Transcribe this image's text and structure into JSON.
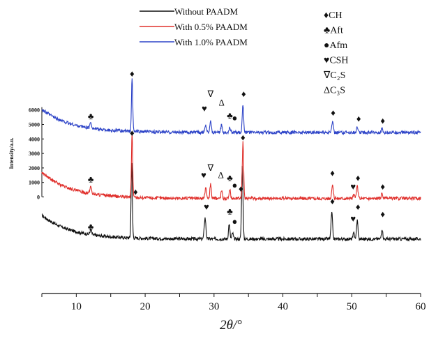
{
  "chart_data": {
    "type": "line",
    "xlabel": "2θ/°",
    "ylabel": "Intensity/a.u.",
    "xlim": [
      5,
      60
    ],
    "x_ticks": [
      "10",
      "20",
      "30",
      "40",
      "50",
      "60"
    ],
    "y_ticks": [
      "0",
      "1000",
      "2000",
      "3000",
      "4000",
      "5000",
      "6000"
    ],
    "ylim_top_trace": [
      0,
      6000
    ],
    "legend": {
      "position": "top",
      "entries": [
        {
          "label": "Without PAADM",
          "color": "#111111"
        },
        {
          "label": "With 0.5% PAADM",
          "color": "#e0302c"
        },
        {
          "label": "With 1.0% PAADM",
          "color": "#2f45c8"
        }
      ]
    },
    "phase_legend": [
      {
        "symbol": "♦",
        "label": "CH"
      },
      {
        "symbol": "♣",
        "label": "Aft"
      },
      {
        "symbol": "●",
        "label": "Afm"
      },
      {
        "symbol": "♥",
        "label": "CSH"
      },
      {
        "symbol": "∇",
        "label": "C₂S"
      },
      {
        "symbol": "Δ",
        "label": "C₃S"
      }
    ],
    "series": [
      {
        "name": "Without PAADM",
        "color": "#111111",
        "baseline": -2900,
        "background": {
          "start": 1650,
          "decay": 4.2
        },
        "peaks": [
          {
            "x": 12.1,
            "h": 350,
            "w": 0.12
          },
          {
            "x": 18.05,
            "h": 5200,
            "w": 0.09
          },
          {
            "x": 28.7,
            "h": 1450,
            "w": 0.12
          },
          {
            "x": 32.2,
            "h": 1050,
            "w": 0.1
          },
          {
            "x": 32.7,
            "h": 400,
            "w": 0.1
          },
          {
            "x": 34.1,
            "h": 5000,
            "w": 0.1
          },
          {
            "x": 47.1,
            "h": 1800,
            "w": 0.11
          },
          {
            "x": 50.3,
            "h": 400,
            "w": 0.11
          },
          {
            "x": 50.8,
            "h": 1300,
            "w": 0.1
          },
          {
            "x": 54.4,
            "h": 700,
            "w": 0.1
          }
        ],
        "markers": [
          {
            "x": 12.1,
            "y": -2250,
            "symbol": "♣"
          },
          {
            "x": 18.6,
            "y": 150,
            "symbol": "♦"
          },
          {
            "x": 28.9,
            "y": -900,
            "symbol": "♥"
          },
          {
            "x": 32.3,
            "y": -1200,
            "symbol": "♣"
          },
          {
            "x": 33.0,
            "y": -1900,
            "symbol": "●"
          },
          {
            "x": 33.9,
            "y": 350,
            "symbol": "♦"
          },
          {
            "x": 47.2,
            "y": -500,
            "symbol": "♦"
          },
          {
            "x": 50.2,
            "y": -1700,
            "symbol": "♥"
          },
          {
            "x": 50.9,
            "y": -900,
            "symbol": "♦"
          },
          {
            "x": 54.5,
            "y": -1400,
            "symbol": "♦"
          }
        ]
      },
      {
        "name": "With 0.5% PAADM",
        "color": "#e0302c",
        "baseline": -100,
        "background": {
          "start": 1800,
          "decay": 4.2
        },
        "peaks": [
          {
            "x": 12.1,
            "h": 500,
            "w": 0.12
          },
          {
            "x": 18.1,
            "h": 4500,
            "w": 0.09
          },
          {
            "x": 28.8,
            "h": 700,
            "w": 0.12
          },
          {
            "x": 29.5,
            "h": 1000,
            "w": 0.1
          },
          {
            "x": 31.1,
            "h": 550,
            "w": 0.1
          },
          {
            "x": 32.3,
            "h": 550,
            "w": 0.1
          },
          {
            "x": 34.2,
            "h": 3900,
            "w": 0.1
          },
          {
            "x": 47.2,
            "h": 1000,
            "w": 0.11
          },
          {
            "x": 50.3,
            "h": 250,
            "w": 0.11
          },
          {
            "x": 50.8,
            "h": 900,
            "w": 0.1
          },
          {
            "x": 54.4,
            "h": 350,
            "w": 0.1
          }
        ],
        "markers": [
          {
            "x": 12.1,
            "y": 1000,
            "symbol": "♣"
          },
          {
            "x": 18.1,
            "y": 4200,
            "symbol": "♦"
          },
          {
            "x": 28.5,
            "y": 1300,
            "symbol": "♥"
          },
          {
            "x": 29.5,
            "y": 1800,
            "symbol": "∇"
          },
          {
            "x": 31.0,
            "y": 1300,
            "symbol": "Δ"
          },
          {
            "x": 32.3,
            "y": 1100,
            "symbol": "♣"
          },
          {
            "x": 33.0,
            "y": 600,
            "symbol": "●"
          },
          {
            "x": 34.2,
            "y": 3900,
            "symbol": "♦"
          },
          {
            "x": 47.2,
            "y": 1450,
            "symbol": "♦"
          },
          {
            "x": 50.2,
            "y": 500,
            "symbol": "♥"
          },
          {
            "x": 50.9,
            "y": 1100,
            "symbol": "♦"
          },
          {
            "x": 54.5,
            "y": 500,
            "symbol": "♦"
          }
        ]
      },
      {
        "name": "With 1.0% PAADM",
        "color": "#2f45c8",
        "baseline": 4450,
        "background": {
          "start": 1600,
          "decay": 4.2
        },
        "peaks": [
          {
            "x": 12.1,
            "h": 400,
            "w": 0.12
          },
          {
            "x": 18.1,
            "h": 3700,
            "w": 0.09
          },
          {
            "x": 28.8,
            "h": 500,
            "w": 0.12
          },
          {
            "x": 29.5,
            "h": 900,
            "w": 0.1
          },
          {
            "x": 31.1,
            "h": 550,
            "w": 0.1
          },
          {
            "x": 32.3,
            "h": 350,
            "w": 0.1
          },
          {
            "x": 34.2,
            "h": 1900,
            "w": 0.1
          },
          {
            "x": 47.2,
            "h": 750,
            "w": 0.11
          },
          {
            "x": 50.8,
            "h": 350,
            "w": 0.1
          },
          {
            "x": 54.4,
            "h": 250,
            "w": 0.1
          }
        ],
        "markers": [
          {
            "x": 12.1,
            "y": 5350,
            "symbol": "♣"
          },
          {
            "x": 18.1,
            "y": 8300,
            "symbol": "♦"
          },
          {
            "x": 28.6,
            "y": 5900,
            "symbol": "♥"
          },
          {
            "x": 29.5,
            "y": 6900,
            "symbol": "∇"
          },
          {
            "x": 31.1,
            "y": 6300,
            "symbol": "Δ"
          },
          {
            "x": 32.3,
            "y": 5400,
            "symbol": "♣"
          },
          {
            "x": 33.0,
            "y": 5250,
            "symbol": "●"
          },
          {
            "x": 34.3,
            "y": 6900,
            "symbol": "♦"
          },
          {
            "x": 47.3,
            "y": 5600,
            "symbol": "♦"
          },
          {
            "x": 51.0,
            "y": 5200,
            "symbol": "♦"
          },
          {
            "x": 54.5,
            "y": 5050,
            "symbol": "♦"
          }
        ]
      }
    ]
  }
}
